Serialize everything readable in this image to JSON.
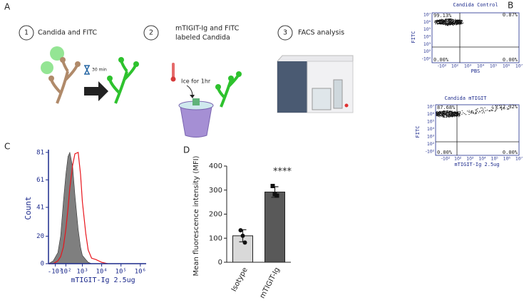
{
  "panel_labels": [
    "A",
    "B",
    "C",
    "D"
  ],
  "steps": [
    {
      "number": "1",
      "lines": [
        "Candida and FITC"
      ],
      "note": "30 min"
    },
    {
      "number": "2",
      "lines": [
        "mTIGIT-Ig and FITC",
        "labeled Candida"
      ],
      "note": "Ice for 1hr"
    },
    {
      "number": "3",
      "lines": [
        "FACS analysis"
      ]
    }
  ],
  "flow_plots": [
    {
      "title": "Candida Control",
      "x_label": "PBS",
      "y_label": "FITC",
      "quadrants": [
        "99.13%",
        "0.87%",
        "0.00%",
        "0.00%"
      ],
      "xticks": [
        "-10²",
        "10²",
        "10³",
        "10⁴",
        "10⁵",
        "10⁶",
        "10⁷"
      ],
      "yticks": [
        "10⁷",
        "10⁶",
        "10⁵",
        "10⁴",
        "10³",
        "10²",
        "-10²"
      ]
    },
    {
      "title": "Candida mTIGIT",
      "x_label": "mTIGIT-Ig 2.5ug",
      "y_label": "FITC",
      "quadrants": [
        "87.68%",
        "12.32%",
        "0.00%",
        "0.00%"
      ],
      "xticks": [
        "-10²",
        "10²",
        "10³",
        "10⁴",
        "10⁵",
        "10⁶",
        "10⁷"
      ],
      "yticks": [
        "10⁷",
        "10⁶",
        "10⁵",
        "10⁴",
        "10³",
        "10²",
        "-10²"
      ]
    }
  ],
  "chart_data": [
    {
      "type": "area",
      "xscale": "biexponential",
      "x_label": "mTIGIT-Ig 2.5ug",
      "y_label": "Count",
      "x": [
        -300,
        -150,
        -50,
        0,
        50,
        100,
        150,
        200,
        300,
        400,
        600,
        800,
        1000,
        1500,
        2000,
        3000,
        5000,
        10000,
        20000
      ],
      "series": [
        {
          "color": "#7f7f7f",
          "fill": true,
          "values": [
            0,
            2,
            8,
            20,
            45,
            65,
            78,
            81,
            70,
            50,
            25,
            12,
            6,
            3,
            1,
            0,
            0,
            0,
            0
          ]
        },
        {
          "color": "#e8141b",
          "fill": false,
          "values": [
            0,
            0,
            2,
            5,
            12,
            25,
            40,
            55,
            72,
            80,
            81,
            65,
            45,
            22,
            10,
            4,
            3,
            1,
            0
          ]
        }
      ],
      "xlim": [
        -300,
        2000000
      ],
      "ylim": [
        0,
        83
      ],
      "xticks": [
        {
          "value": -100,
          "label": "-10²"
        },
        {
          "value": 100,
          "label": "10²"
        },
        {
          "value": 1000,
          "label": "10³"
        },
        {
          "value": 10000,
          "label": "10⁴"
        },
        {
          "value": 100000,
          "label": "10⁵"
        },
        {
          "value": 1000000,
          "label": "10⁶"
        }
      ],
      "yticks": [
        0,
        20,
        41,
        61,
        81
      ]
    },
    {
      "type": "bar",
      "y_label": "Mean fluorescence intensity (MFI)",
      "annotation": "****",
      "categories": [
        "Isotype",
        "mTIGIT-Ig"
      ],
      "values": [
        110,
        292
      ],
      "errors": [
        25,
        22
      ],
      "points": [
        [
          133,
          110,
          82
        ],
        [
          317,
          283,
          277
        ]
      ],
      "colors": [
        "#d9d9d9",
        "#595959"
      ],
      "ylim": [
        0,
        400
      ],
      "yticks": [
        0,
        100,
        200,
        300,
        400
      ]
    }
  ]
}
